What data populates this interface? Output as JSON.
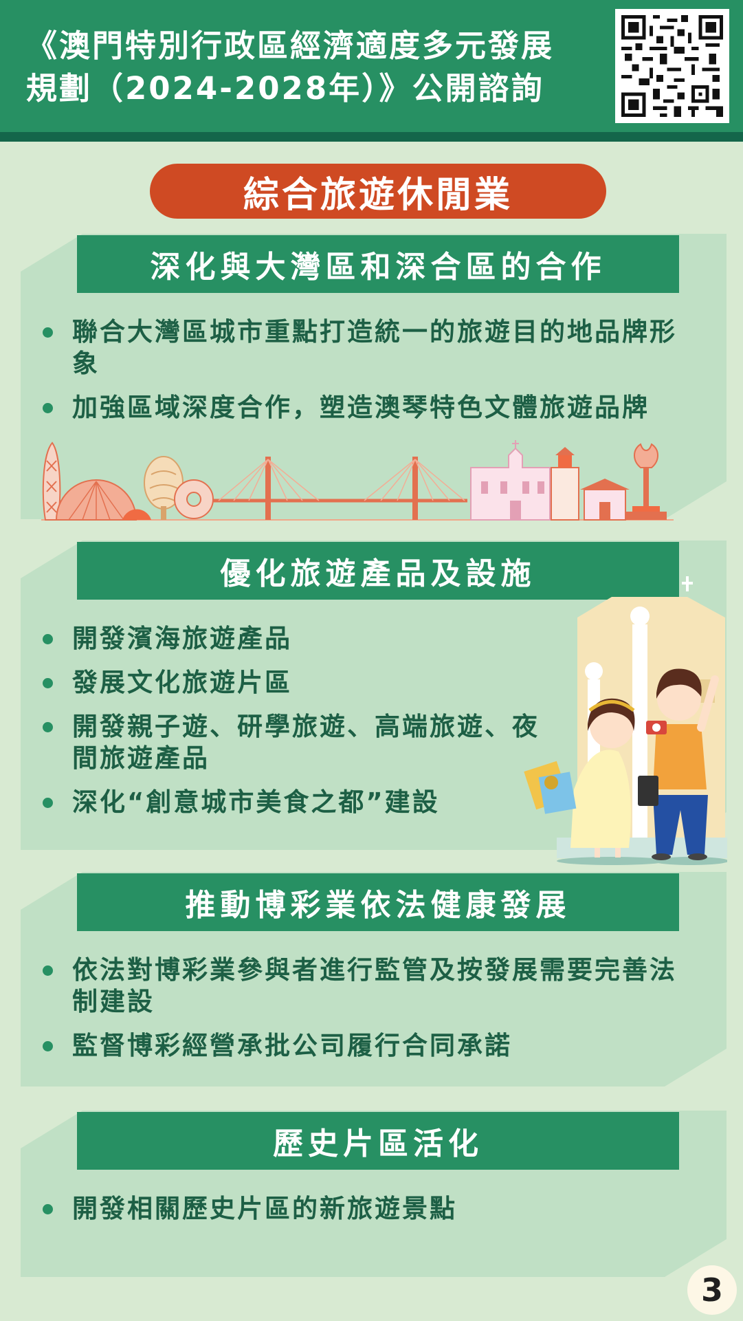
{
  "header": {
    "title_line1": "《澳門特別行政區經濟適度多元發展",
    "title_line2": "規劃（2024-2028年）》公開諮詢"
  },
  "qr_code": {
    "icon": "qr-code-icon"
  },
  "category": {
    "label": "綜合旅遊休閒業"
  },
  "sections": [
    {
      "heading": "深化與大灣區和深合區的合作",
      "items": [
        "聯合大灣區城市重點打造統一的旅遊目的地品牌形象",
        "加強區域深度合作，塑造澳琴特色文體旅遊品牌"
      ]
    },
    {
      "heading": "優化旅遊產品及設施",
      "items": [
        "開發濱海旅遊產品",
        "發展文化旅遊片區",
        "開發親子遊、研學旅遊、高端旅遊、夜間旅遊產品",
        "深化“創意城市美食之都”建設"
      ]
    },
    {
      "heading": "推動博彩業依法健康發展",
      "items": [
        "依法對博彩業參與者進行監管及按發展需要完善法制建設",
        "監督博彩經營承批公司履行合同承諾"
      ]
    },
    {
      "heading": "歷史片區活化",
      "items": [
        "開發相關歷史片區的新旅遊景點"
      ]
    }
  ],
  "illustrations": {
    "skyline": "macau-skyline-illustration",
    "tourists": "tourist-couple-illustration"
  },
  "colors": {
    "primary_green": "#279063",
    "dark_green": "#14664a",
    "panel": "#c0e0c5",
    "background": "#d8ead2",
    "accent_orange": "#cf4a23",
    "text": "#1d5f45"
  },
  "page_number": "3"
}
